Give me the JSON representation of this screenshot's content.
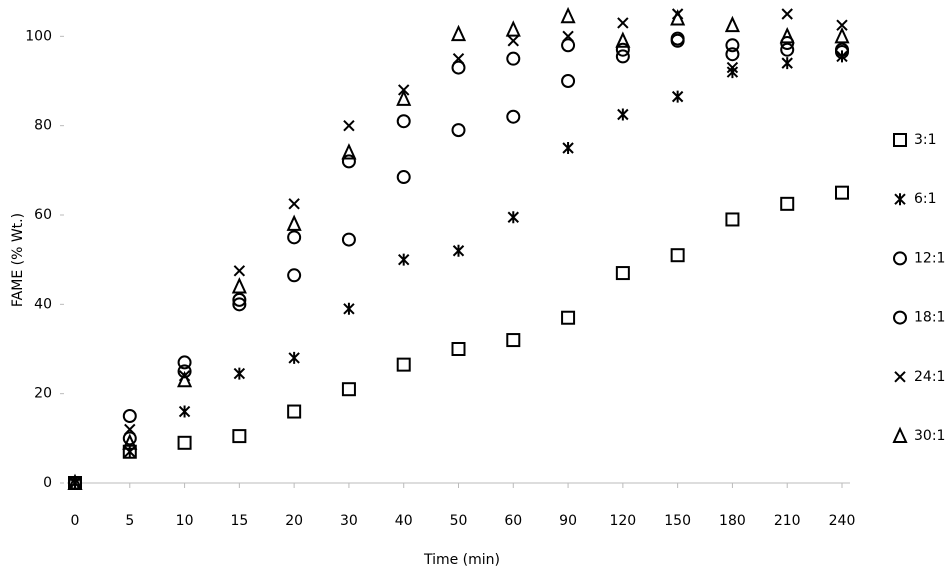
{
  "chart_data": {
    "type": "scatter",
    "x_label": "Time (min)",
    "y_label": "FAME (% Wt.)",
    "categories": [
      0,
      5,
      10,
      15,
      20,
      30,
      40,
      50,
      60,
      90,
      120,
      150,
      180,
      210,
      240
    ],
    "ylim": [
      0,
      105
    ],
    "yticks": [
      0,
      20,
      40,
      60,
      80,
      100
    ],
    "legend": "right",
    "series": [
      {
        "name": "3:1",
        "color": "#000000",
        "marker": "square",
        "values": [
          0,
          7,
          9,
          10.5,
          16,
          21,
          26.5,
          30,
          32,
          37,
          47,
          51,
          59,
          62.5,
          65
        ]
      },
      {
        "name": "6:1",
        "color": "#000000",
        "marker": "asterisk",
        "values": [
          0,
          7,
          16,
          24.5,
          28,
          39,
          50,
          52,
          59.5,
          75,
          82.5,
          86.5,
          92,
          94,
          95.5
        ]
      },
      {
        "name": "12:1",
        "color": "#000000",
        "marker": "circle",
        "values": [
          0,
          10,
          25,
          40,
          46.5,
          54.5,
          68.5,
          79,
          82,
          90,
          95.5,
          99,
          96,
          97,
          96.5
        ]
      },
      {
        "name": "18:1",
        "color": "#000000",
        "marker": "circle",
        "values": [
          0,
          15,
          27,
          41,
          55,
          72,
          81,
          93,
          95,
          98,
          97,
          99.5,
          98,
          98.5,
          97
        ]
      },
      {
        "name": "24:1",
        "color": "#000000",
        "marker": "cross",
        "values": [
          0,
          12,
          24,
          47.5,
          62.5,
          80,
          88,
          95,
          99,
          100,
          103,
          105,
          93,
          105,
          102.5
        ]
      },
      {
        "name": "30:1",
        "color": "#000000",
        "marker": "triangle",
        "values": [
          0,
          9,
          23,
          44,
          58,
          74,
          86,
          100.5,
          101.5,
          104.5,
          99,
          104,
          102.5,
          100,
          100
        ]
      }
    ]
  }
}
